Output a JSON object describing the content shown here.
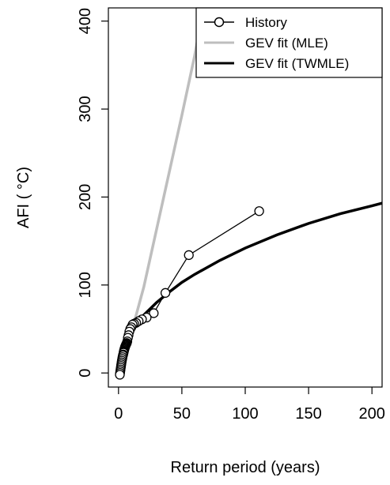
{
  "chart_data": {
    "type": "line",
    "xlabel": "Return period (years)",
    "ylabel": "AFI ( °C)",
    "xlim": [
      -8,
      208
    ],
    "ylim": [
      -16,
      415
    ],
    "xticks": [
      0,
      50,
      100,
      150,
      200
    ],
    "yticks": [
      0,
      100,
      200,
      300,
      400
    ],
    "legend_position": "top-right",
    "series": [
      {
        "name": "History",
        "color": "#000000",
        "marker": "circle",
        "x": [
          111,
          55.5,
          37,
          27.8,
          22.2,
          18.5,
          15.9,
          13.9,
          12.3,
          11.1,
          10.1,
          9.25,
          8.54,
          7.93,
          7.4,
          6.94,
          6.53,
          6.17,
          5.84,
          5.55,
          5.29,
          5.05,
          4.83,
          4.63,
          4.44,
          4.27,
          4.11,
          3.96,
          3.7,
          3.47,
          3.17,
          2.92,
          2.64,
          2.41,
          2.22,
          2.0,
          1.8,
          1.6,
          1.4,
          1.2,
          1.05
        ],
        "values": [
          184,
          134,
          91,
          68,
          63,
          61,
          59,
          57,
          56,
          55,
          52,
          50,
          47,
          43,
          40,
          36,
          34,
          33,
          32,
          31,
          30,
          29,
          28,
          27,
          26,
          25,
          24,
          23,
          21,
          20,
          18,
          16,
          14,
          12,
          10,
          8,
          6,
          4,
          2,
          0,
          -2
        ]
      },
      {
        "name": "GEV fit (MLE)",
        "color": "#bebebe",
        "x": [
          1,
          2,
          5,
          10,
          20,
          30,
          40,
          50,
          60,
          65
        ],
        "values": [
          0,
          15,
          30,
          45,
          98,
          163,
          228,
          293,
          360,
          400
        ]
      },
      {
        "name": "GEV fit (TWMLE)",
        "color": "#000000",
        "x": [
          1,
          2,
          3,
          5,
          7,
          10,
          15,
          20,
          30,
          40,
          50,
          60,
          80,
          100,
          125,
          150,
          175,
          200,
          208
        ],
        "values": [
          0,
          15,
          22,
          32,
          40,
          48,
          58,
          66,
          80,
          92,
          103,
          112,
          128,
          142,
          157,
          170,
          181,
          190,
          193
        ]
      }
    ]
  }
}
